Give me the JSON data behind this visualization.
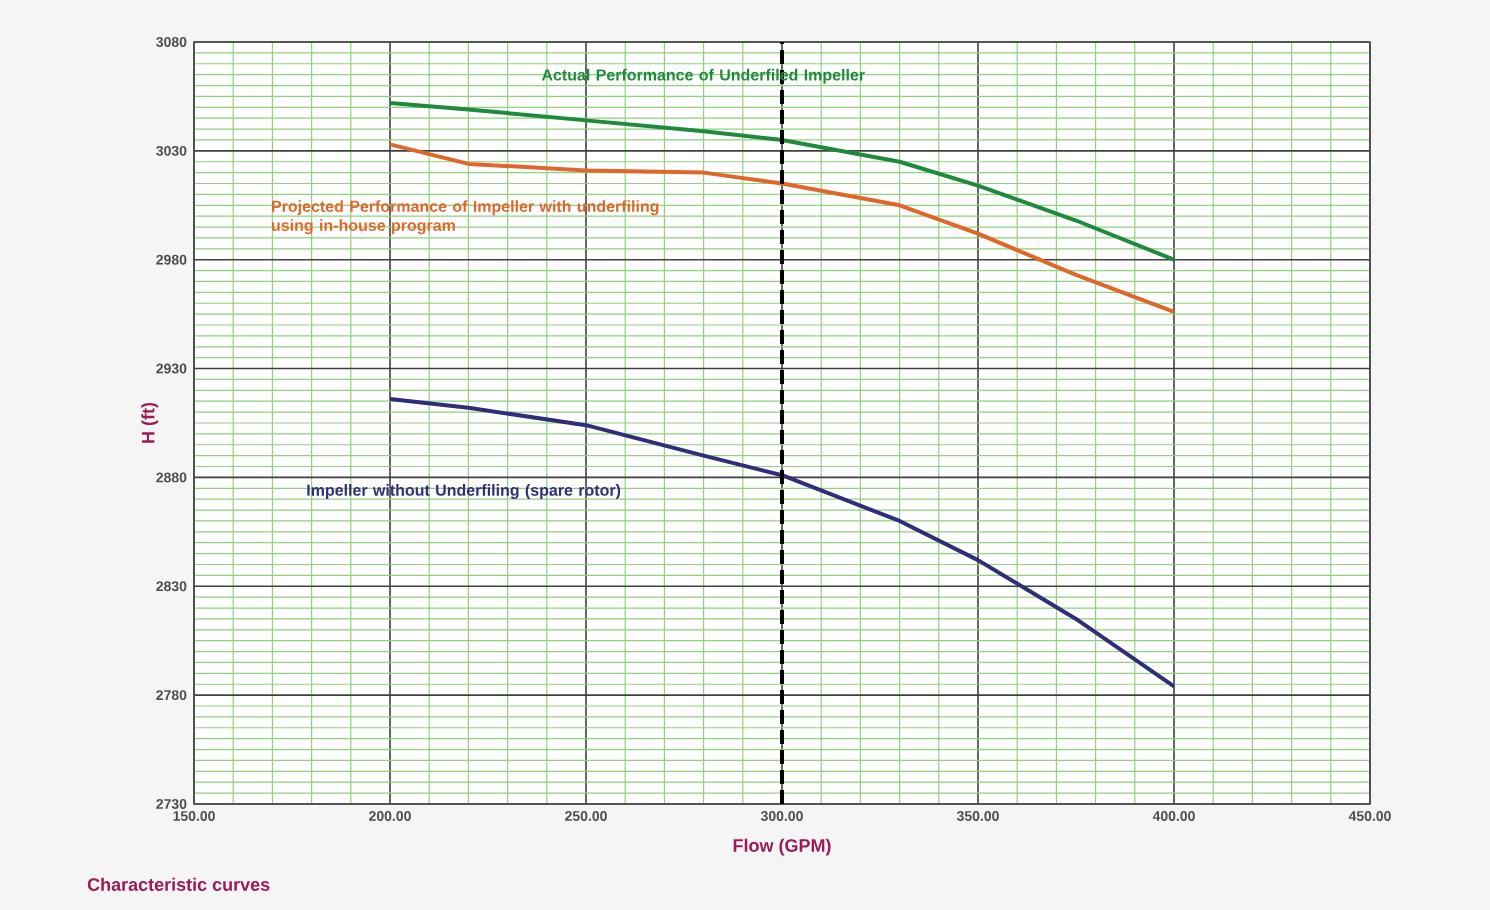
{
  "chart_data": {
    "type": "line",
    "xlabel": "Flow (GPM)",
    "ylabel": "H (ft)",
    "annotations": [
      "Characteristic curves"
    ],
    "x": [
      200,
      220,
      250,
      280,
      300,
      330,
      350,
      375,
      400
    ],
    "series": [
      {
        "name": "Actual Performance of Underfiled Impeller",
        "color": "#1e8a3c",
        "values": [
          3052,
          3049,
          3044,
          3039,
          3035,
          3025,
          3014,
          2998,
          2980
        ]
      },
      {
        "name": "Projected Performance of Impeller with underfiling using in-house program",
        "color": "#e0662a",
        "values": [
          3033,
          3024,
          3021,
          3020,
          3015,
          3005,
          2992,
          2973,
          2956
        ]
      },
      {
        "name": "Impeller without Underfiling (spare rotor)",
        "color": "#2e2e7a",
        "values": [
          2916,
          2912,
          2904,
          2890,
          2881,
          2860,
          2842,
          2815,
          2784
        ]
      }
    ],
    "xlim": [
      150,
      450
    ],
    "ylim": [
      2730,
      3080
    ],
    "xticks": [
      {
        "value": 150,
        "label": "150.00"
      },
      {
        "value": 200,
        "label": "200.00"
      },
      {
        "value": 250,
        "label": "250.00"
      },
      {
        "value": 300,
        "label": "300.00"
      },
      {
        "value": 350,
        "label": "350.00"
      },
      {
        "value": 400,
        "label": "400.00"
      },
      {
        "value": 450,
        "label": "450.00"
      },
      {
        "value": 160,
        "label": null
      },
      {
        "value": 170,
        "label": null
      },
      {
        "value": 180,
        "label": null
      },
      {
        "value": 190,
        "label": null
      },
      {
        "value": 210,
        "label": null
      },
      {
        "value": 220,
        "label": null
      },
      {
        "value": 230,
        "label": null
      },
      {
        "value": 240,
        "label": null
      },
      {
        "value": 260,
        "label": null
      },
      {
        "value": 270,
        "label": null
      },
      {
        "value": 280,
        "label": null
      },
      {
        "value": 290,
        "label": null
      },
      {
        "value": 310,
        "label": null
      },
      {
        "value": 320,
        "label": null
      },
      {
        "value": 330,
        "label": null
      },
      {
        "value": 340,
        "label": null
      },
      {
        "value": 360,
        "label": null
      },
      {
        "value": 370,
        "label": null
      },
      {
        "value": 380,
        "label": null
      },
      {
        "value": 390,
        "label": null
      },
      {
        "value": 410,
        "label": null
      },
      {
        "value": 420,
        "label": null
      },
      {
        "value": 430,
        "label": null
      },
      {
        "value": 440,
        "label": null
      }
    ],
    "yticks": [
      2730,
      2780,
      2830,
      2880,
      2930,
      2980,
      3030,
      3080,
      {
        "value": 2735,
        "label": null
      },
      {
        "value": 2740,
        "label": null
      },
      {
        "value": 2745,
        "label": null
      },
      {
        "value": 2750,
        "label": null
      },
      {
        "value": 2755,
        "label": null
      },
      {
        "value": 2760,
        "label": null
      },
      {
        "value": 2765,
        "label": null
      },
      {
        "value": 2770,
        "label": null
      },
      {
        "value": 2775,
        "label": null
      },
      {
        "value": 2785,
        "label": null
      },
      {
        "value": 2790,
        "label": null
      },
      {
        "value": 2795,
        "label": null
      },
      {
        "value": 2800,
        "label": null
      },
      {
        "value": 2805,
        "label": null
      },
      {
        "value": 2810,
        "label": null
      },
      {
        "value": 2815,
        "label": null
      },
      {
        "value": 2820,
        "label": null
      },
      {
        "value": 2825,
        "label": null
      },
      {
        "value": 2835,
        "label": null
      },
      {
        "value": 2840,
        "label": null
      },
      {
        "value": 2845,
        "label": null
      },
      {
        "value": 2850,
        "label": null
      },
      {
        "value": 2855,
        "label": null
      },
      {
        "value": 2860,
        "label": null
      },
      {
        "value": 2865,
        "label": null
      },
      {
        "value": 2870,
        "label": null
      },
      {
        "value": 2875,
        "label": null
      },
      {
        "value": 2885,
        "label": null
      },
      {
        "value": 2890,
        "label": null
      },
      {
        "value": 2895,
        "label": null
      },
      {
        "value": 2900,
        "label": null
      },
      {
        "value": 2905,
        "label": null
      },
      {
        "value": 2910,
        "label": null
      },
      {
        "value": 2915,
        "label": null
      },
      {
        "value": 2920,
        "label": null
      },
      {
        "value": 2925,
        "label": null
      },
      {
        "value": 2935,
        "label": null
      },
      {
        "value": 2940,
        "label": null
      },
      {
        "value": 2945,
        "label": null
      },
      {
        "value": 2950,
        "label": null
      },
      {
        "value": 2955,
        "label": null
      },
      {
        "value": 2960,
        "label": null
      },
      {
        "value": 2965,
        "label": null
      },
      {
        "value": 2970,
        "label": null
      },
      {
        "value": 2975,
        "label": null
      },
      {
        "value": 2985,
        "label": null
      },
      {
        "value": 2990,
        "label": null
      },
      {
        "value": 2995,
        "label": null
      },
      {
        "value": 3000,
        "label": null
      },
      {
        "value": 3005,
        "label": null
      },
      {
        "value": 3010,
        "label": null
      },
      {
        "value": 3015,
        "label": null
      },
      {
        "value": 3020,
        "label": null
      },
      {
        "value": 3025,
        "label": null
      },
      {
        "value": 3035,
        "label": null
      },
      {
        "value": 3040,
        "label": null
      },
      {
        "value": 3045,
        "label": null
      },
      {
        "value": 3050,
        "label": null
      },
      {
        "value": 3055,
        "label": null
      },
      {
        "value": 3060,
        "label": null
      },
      {
        "value": 3065,
        "label": null
      },
      {
        "value": 3070,
        "label": null
      },
      {
        "value": 3075,
        "label": null
      }
    ],
    "ref_lines": [
      {
        "axis": "x",
        "value": 300,
        "color": "#000000",
        "line_style": "dashed"
      }
    ],
    "grid": true,
    "marker": "none",
    "line_style": "solid"
  }
}
